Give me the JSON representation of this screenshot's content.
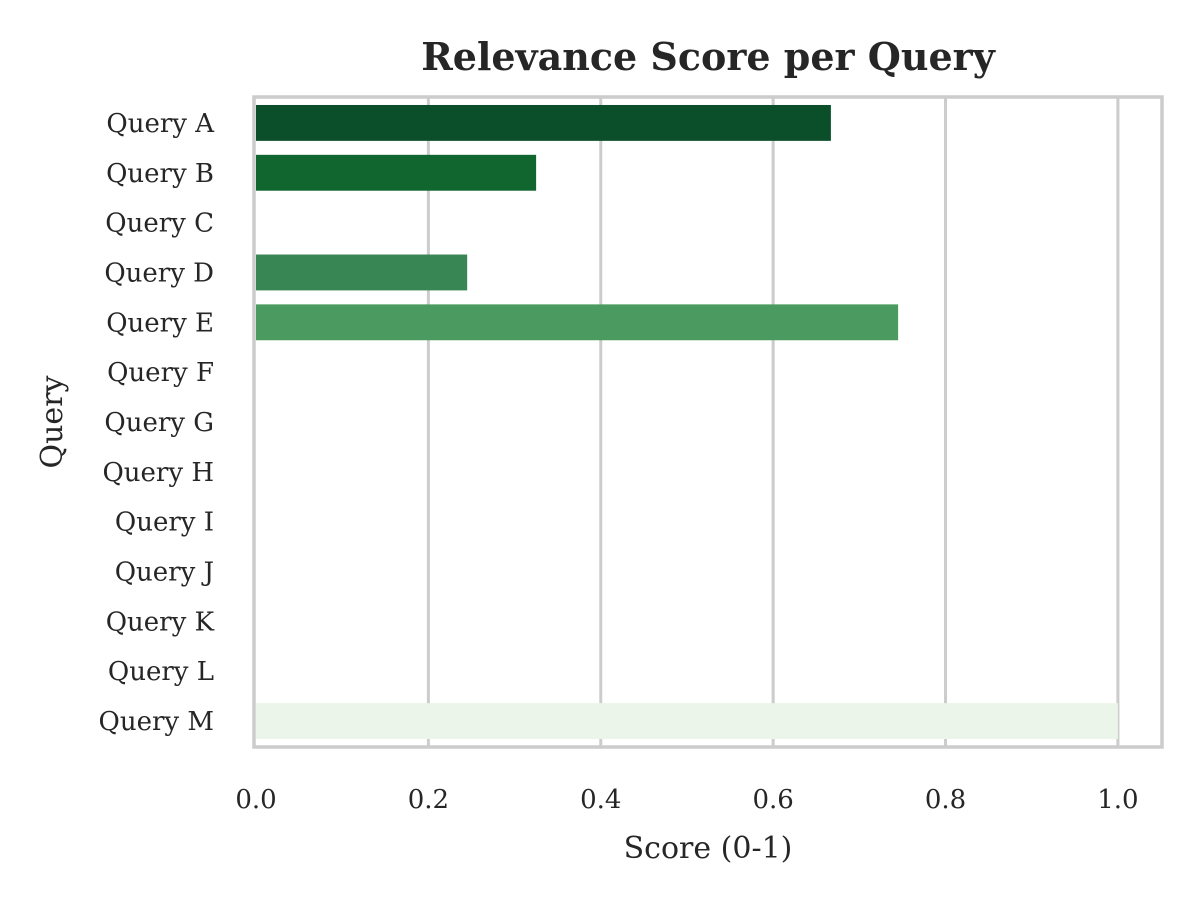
{
  "chart_data": {
    "type": "bar",
    "orientation": "horizontal",
    "title": "Relevance Score per Query",
    "xlabel": "Score (0-1)",
    "ylabel": "Query",
    "categories": [
      "Query A",
      "Query B",
      "Query C",
      "Query D",
      "Query E",
      "Query F",
      "Query G",
      "Query H",
      "Query I",
      "Query J",
      "Query K",
      "Query L",
      "Query M"
    ],
    "values": [
      0.667,
      0.325,
      0,
      0.245,
      0.745,
      0,
      0,
      0,
      0,
      0,
      0,
      0,
      1.0
    ],
    "colors": [
      "#0b4f2a",
      "#11652f",
      "#1e7a3c",
      "#388653",
      "#4b9b60",
      "#ffffff",
      "#ffffff",
      "#ffffff",
      "#ffffff",
      "#ffffff",
      "#ffffff",
      "#ffffff",
      "#ecf5ea"
    ],
    "xlim": [
      0,
      1.05
    ],
    "xticks": [
      0.0,
      0.2,
      0.4,
      0.6,
      0.8,
      1.0
    ],
    "xtick_labels": [
      "0.0",
      "0.2",
      "0.4",
      "0.6",
      "0.8",
      "1.0"
    ],
    "grid": "vertical",
    "grid_color": "#cccccc",
    "spine_color": "#cccccc"
  }
}
